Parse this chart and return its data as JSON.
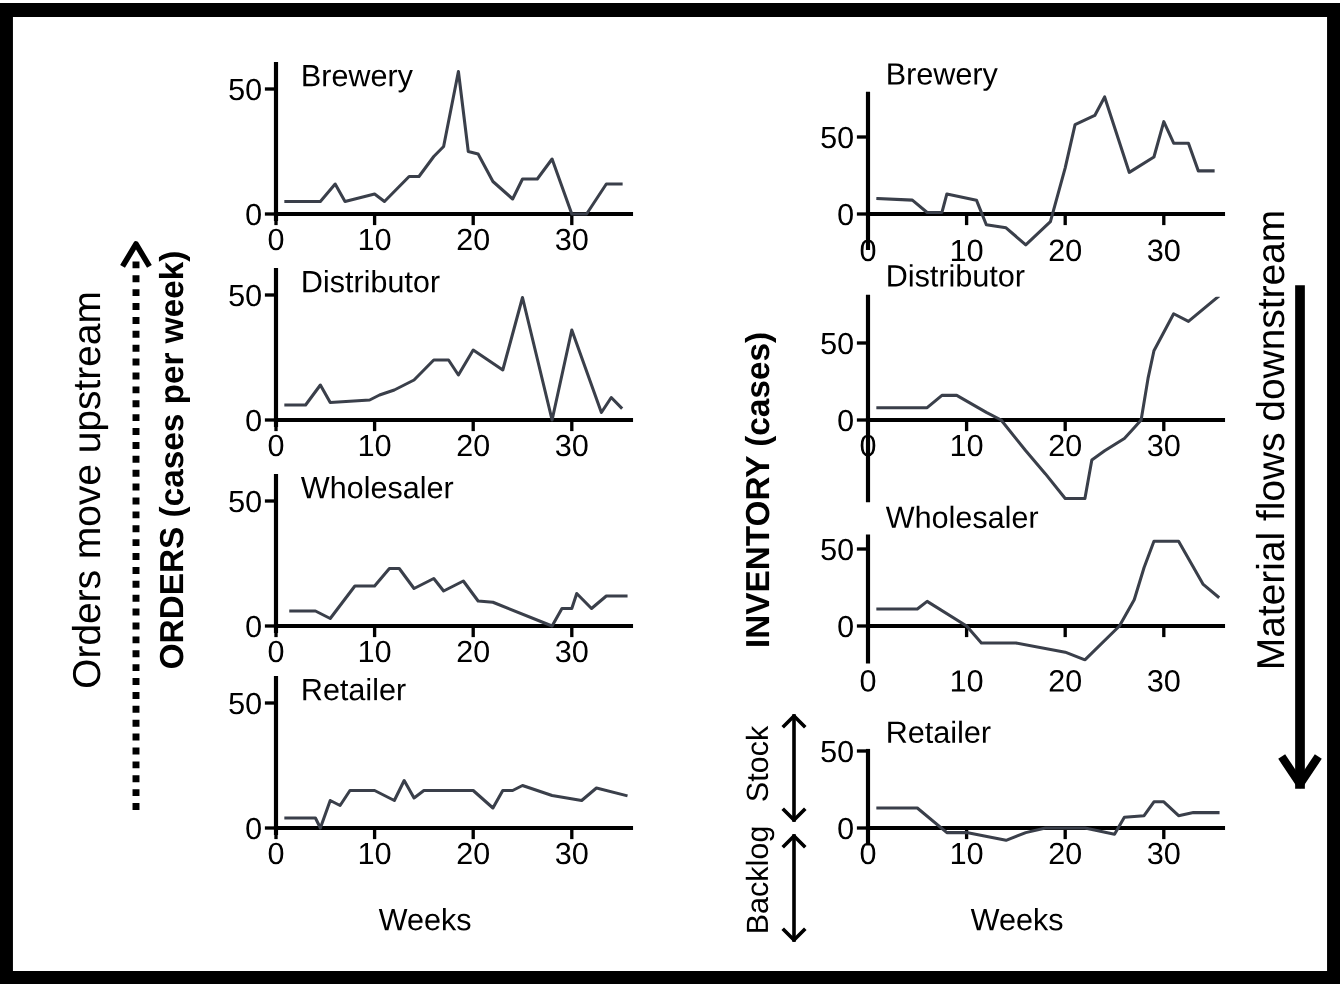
{
  "chart_data": [
    {
      "type": "line",
      "title": "Brewery",
      "xlim": [
        0,
        36
      ],
      "ylim": [
        -2,
        60
      ],
      "xticks": [
        0,
        10,
        20,
        30
      ],
      "yticks": [
        0,
        50
      ],
      "grid": false,
      "legend": false,
      "x": [
        1,
        4.5,
        6,
        7,
        10,
        11,
        13.5,
        14.5,
        16,
        17,
        18.5,
        19.5,
        20.5,
        22,
        24,
        25,
        26.5,
        28,
        30,
        31.5,
        33.5,
        35
      ],
      "series": [
        {
          "color": "#3a3f4a",
          "values": [
            5,
            5,
            12,
            5,
            8,
            5,
            15,
            15,
            23,
            27,
            57,
            25,
            24,
            13,
            6,
            14,
            14,
            22,
            0,
            0,
            12,
            12
          ]
        }
      ]
    },
    {
      "type": "line",
      "title": "Distributor",
      "ylabel": "ORDERS (cases per week)",
      "xlim": [
        0,
        36
      ],
      "ylim": [
        -2,
        60
      ],
      "xticks": [
        0,
        10,
        20,
        30
      ],
      "yticks": [
        0,
        50
      ],
      "grid": false,
      "legend": false,
      "x": [
        1,
        3,
        4.5,
        5.5,
        9.5,
        10.5,
        12,
        14,
        16,
        17.5,
        18.5,
        20,
        23,
        25,
        28,
        30,
        33,
        34,
        35
      ],
      "series": [
        {
          "color": "#3a3f4a",
          "values": [
            6,
            6,
            14,
            7,
            8,
            10,
            12,
            16,
            24,
            24,
            18,
            28,
            20,
            49,
            0,
            36,
            3,
            9,
            5
          ]
        }
      ]
    },
    {
      "type": "line",
      "title": "Wholesaler",
      "xlim": [
        0,
        36
      ],
      "ylim": [
        -2,
        60
      ],
      "xticks": [
        0,
        10,
        20,
        30
      ],
      "yticks": [
        0,
        50
      ],
      "grid": false,
      "legend": false,
      "x": [
        1.5,
        4,
        5.5,
        8,
        10,
        11.5,
        12.5,
        14,
        16,
        17,
        19,
        20.5,
        22,
        28,
        29,
        30,
        30.5,
        32,
        33.5,
        35.5
      ],
      "series": [
        {
          "color": "#3a3f4a",
          "values": [
            6,
            6,
            3,
            16,
            16,
            23,
            23,
            15,
            19,
            14,
            18,
            10,
            9.5,
            0,
            7,
            7,
            13,
            7,
            12,
            12
          ]
        }
      ]
    },
    {
      "type": "line",
      "title": "Retailer",
      "xlabel": "Weeks",
      "annotations": [
        "Orders move upstream"
      ],
      "xlim": [
        0,
        36
      ],
      "ylim": [
        -2,
        60
      ],
      "xticks": [
        0,
        10,
        20,
        30
      ],
      "yticks": [
        0,
        50
      ],
      "grid": false,
      "legend": false,
      "x": [
        1,
        4,
        4.5,
        5.5,
        6.5,
        7.5,
        10,
        12,
        13,
        14,
        15,
        20,
        22,
        23,
        24,
        25,
        28,
        31,
        32.5,
        35.5
      ],
      "series": [
        {
          "color": "#3a3f4a",
          "values": [
            4,
            4,
            0,
            11,
            9,
            15,
            15,
            11,
            19,
            12,
            15,
            15,
            8,
            15,
            15,
            17,
            13,
            11,
            16,
            13
          ]
        }
      ]
    },
    {
      "type": "line",
      "title": "Brewery",
      "xlim": [
        0,
        36
      ],
      "ylim": [
        -22,
        78
      ],
      "xticks": [
        0,
        10,
        20,
        30
      ],
      "yticks": [
        0,
        50
      ],
      "grid": false,
      "legend": false,
      "x": [
        1,
        4.5,
        6,
        7.5,
        8,
        11,
        12,
        14,
        16,
        18.5,
        20,
        21,
        23,
        24,
        26.5,
        29,
        30,
        31,
        32.5,
        33.5,
        35
      ],
      "series": [
        {
          "color": "#3a3f4a",
          "values": [
            10,
            9,
            1,
            1,
            13,
            9,
            -7,
            -9,
            -20,
            -5,
            30,
            58,
            64,
            76,
            27,
            37,
            60,
            46,
            46,
            28,
            28
          ]
        }
      ]
    },
    {
      "type": "line",
      "title": "Distributor",
      "ylabel": "INVENTORY (cases)",
      "xlim": [
        0,
        36
      ],
      "ylim": [
        -52,
        80
      ],
      "xticks": [
        0,
        10,
        20,
        30
      ],
      "yticks": [
        0,
        50
      ],
      "grid": false,
      "legend": false,
      "x": [
        1,
        6,
        7.5,
        9,
        12,
        13.5,
        16,
        18,
        20,
        22,
        22.7,
        24,
        26,
        27,
        27.7,
        28.4,
        29,
        31,
        32.5,
        35.5
      ],
      "series": [
        {
          "color": "#3a3f4a",
          "values": [
            8,
            8,
            16,
            16,
            5,
            0,
            -20,
            -35,
            -51,
            -51,
            -26,
            -20,
            -12,
            -5,
            0,
            27,
            45,
            69,
            64,
            80
          ]
        }
      ]
    },
    {
      "type": "line",
      "title": "Wholesaler",
      "annotations": [
        "Material flows downstream"
      ],
      "xlim": [
        0,
        36
      ],
      "ylim": [
        -23,
        58
      ],
      "xticks": [
        0,
        10,
        20,
        30
      ],
      "yticks": [
        0,
        50
      ],
      "grid": false,
      "legend": false,
      "x": [
        1,
        5,
        6,
        10,
        11.5,
        15,
        20,
        22,
        25.5,
        27,
        28,
        29,
        31.5,
        34,
        35.5
      ],
      "series": [
        {
          "color": "#3a3f4a",
          "values": [
            11,
            11,
            16,
            0,
            -11,
            -11,
            -17,
            -22,
            0,
            17,
            38,
            55,
            55,
            27,
            19
          ]
        }
      ]
    },
    {
      "type": "line",
      "title": "Retailer",
      "xlabel": "Weeks",
      "annotations": [
        "Stock",
        "Backlog"
      ],
      "xlim": [
        0,
        36
      ],
      "ylim": [
        -10,
        50
      ],
      "xticks": [
        0,
        10,
        20,
        30
      ],
      "yticks": [
        0,
        50
      ],
      "grid": false,
      "legend": false,
      "x": [
        1,
        5,
        8,
        10,
        14,
        16,
        18,
        22,
        25,
        26,
        28,
        29,
        30,
        31.5,
        33,
        35.5
      ],
      "series": [
        {
          "color": "#3a3f4a",
          "values": [
            13,
            13,
            -3,
            -3,
            -8,
            -3,
            0,
            0,
            -4,
            7,
            8,
            17,
            17,
            8,
            10,
            10
          ]
        }
      ]
    }
  ]
}
